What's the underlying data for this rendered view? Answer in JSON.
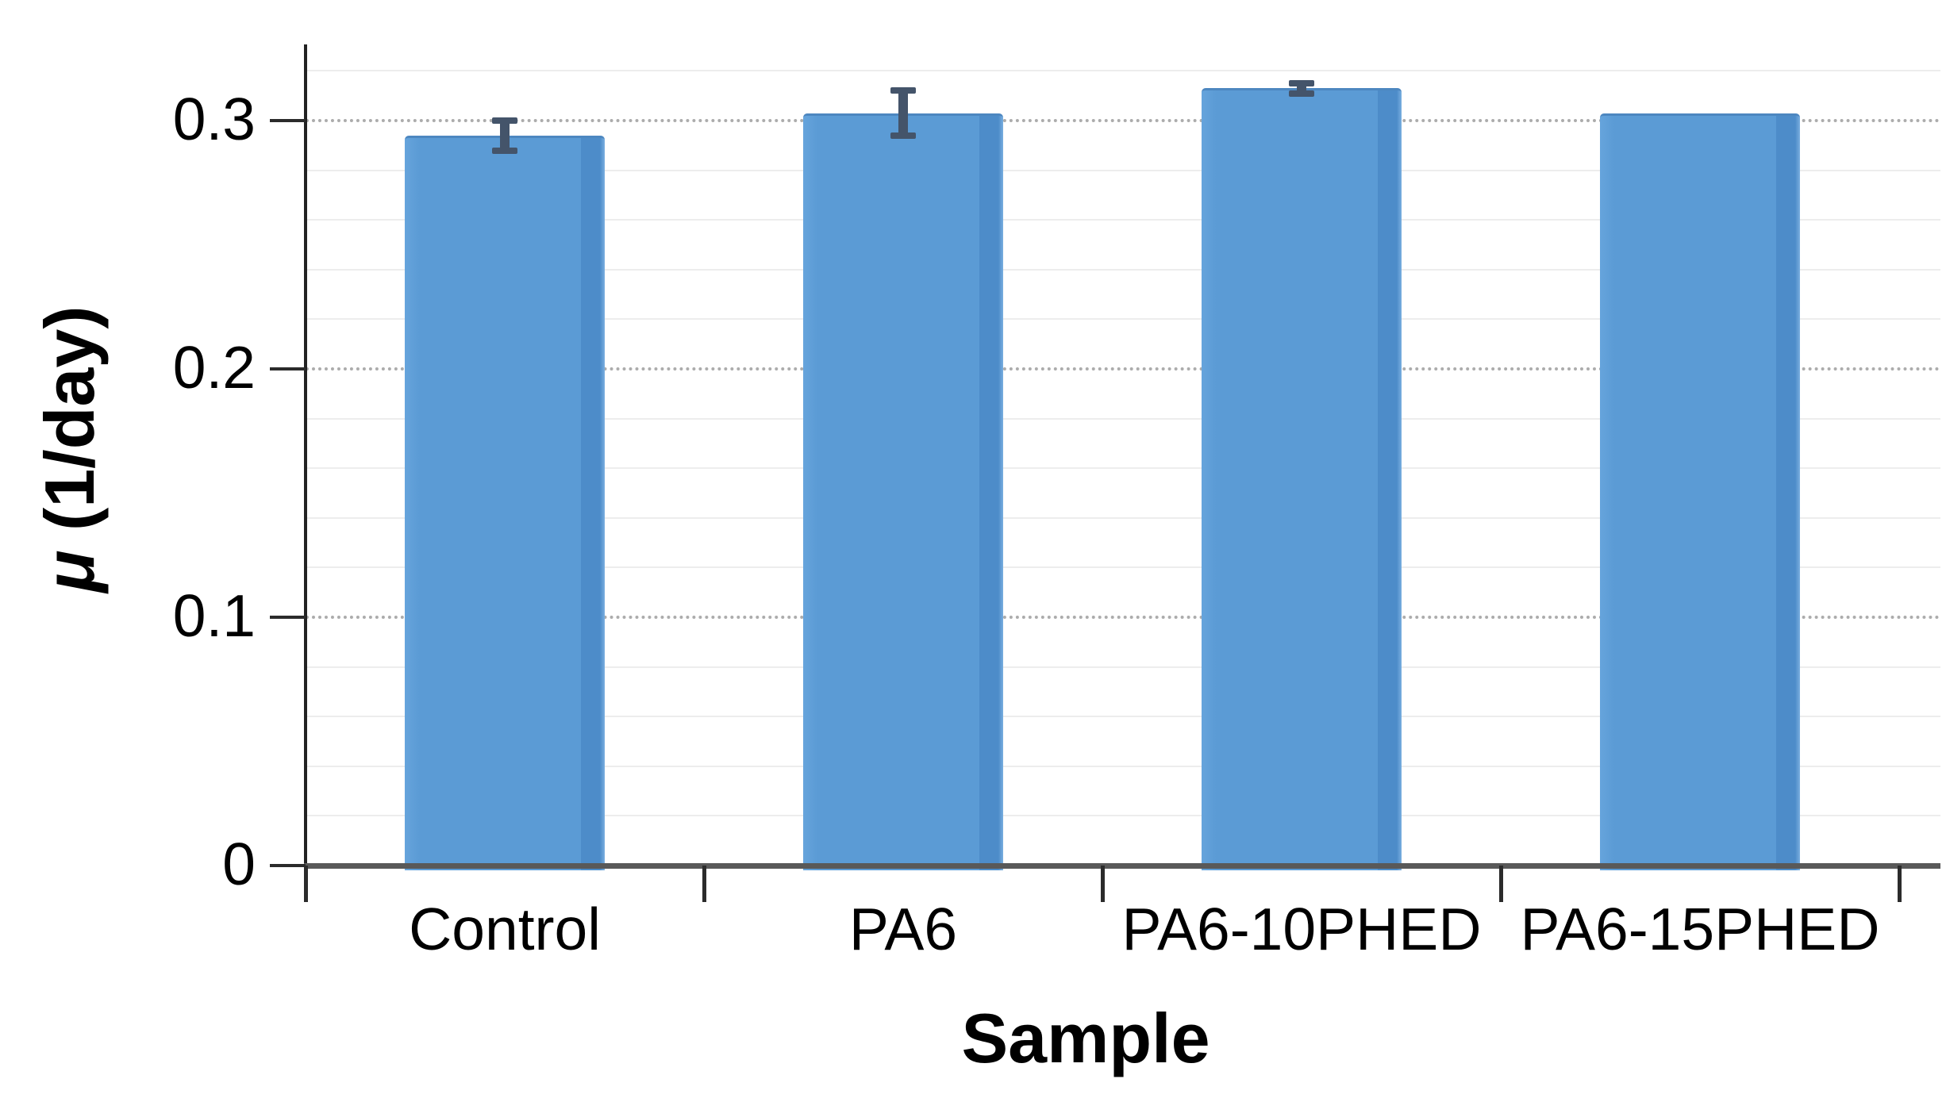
{
  "chart_data": {
    "type": "bar",
    "title": "",
    "categories": [
      "Control",
      "PA6",
      "PA6-10PHED",
      "PA6-15PHED"
    ],
    "values": [
      0.294,
      0.303,
      0.313,
      0.303
    ],
    "errors": [
      0.006,
      0.009,
      0.002,
      0
    ],
    "xlabel": "Sample",
    "ylabel": "μ (1/day)",
    "ylabel_symbol": "μ",
    "ylabel_units": " (1/day)",
    "yticks": [
      0,
      0.1,
      0.2,
      0.3
    ],
    "ytick_labels": [
      "0",
      "0.1",
      "0.2",
      "0.3"
    ],
    "ylim": [
      0,
      0.33
    ],
    "minor_grid_step": 0.02,
    "grid": "horizontal; faint solid minor lines every 0.02, dotted gray major lines every 0.1",
    "legend": "none",
    "bar_color": "#5b9bd5",
    "bar_edge_color": "#4d8cc9",
    "error_bar_color": "#44546a",
    "x_axis_color": "#595959",
    "y_axis_color": "#222222",
    "gridline_major_color": "#9e9e9e",
    "gridline_minor_color": "#ededed"
  }
}
